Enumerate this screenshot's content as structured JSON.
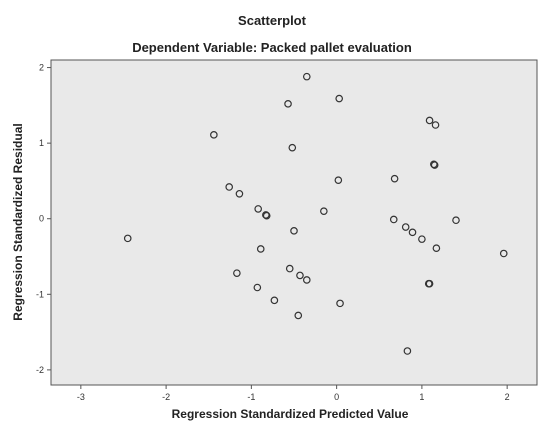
{
  "chart_data": {
    "type": "scatter",
    "title": "Scatterplot",
    "subtitle": "Dependent Variable: Packed pallet evaluation",
    "xlabel": "Regression Standardized Predicted Value",
    "ylabel": "Regression Standardized Residual",
    "xlim": [
      -3.35,
      2.35
    ],
    "ylim": [
      -2.2,
      2.1
    ],
    "x_ticks": [
      -3,
      -2,
      -1,
      0,
      1,
      2
    ],
    "y_ticks": [
      -2,
      -1,
      0,
      1,
      2
    ],
    "x_tick_labels": [
      "-3",
      "-2",
      "-1",
      "0",
      "1",
      "2"
    ],
    "y_tick_labels": [
      "-2",
      "-1",
      "0",
      "1",
      "2"
    ],
    "grid": false,
    "legend": "none",
    "marker": "open-circle",
    "plot_background": "#e9e9e9",
    "marker_color": "#333333",
    "points": [
      {
        "x": -2.45,
        "y": -0.26
      },
      {
        "x": -1.44,
        "y": 1.11
      },
      {
        "x": -1.26,
        "y": 0.42
      },
      {
        "x": -1.14,
        "y": 0.33
      },
      {
        "x": -1.17,
        "y": -0.72
      },
      {
        "x": -0.92,
        "y": 0.13
      },
      {
        "x": -0.83,
        "y": 0.05
      },
      {
        "x": -0.82,
        "y": 0.04
      },
      {
        "x": -0.89,
        "y": -0.4
      },
      {
        "x": -0.93,
        "y": -0.91
      },
      {
        "x": -0.73,
        "y": -1.08
      },
      {
        "x": -0.57,
        "y": 1.52
      },
      {
        "x": -0.52,
        "y": 0.94
      },
      {
        "x": -0.5,
        "y": -0.16
      },
      {
        "x": -0.55,
        "y": -0.66
      },
      {
        "x": -0.43,
        "y": -0.75
      },
      {
        "x": -0.35,
        "y": -0.81
      },
      {
        "x": -0.45,
        "y": -1.28
      },
      {
        "x": -0.35,
        "y": 1.88
      },
      {
        "x": -0.15,
        "y": 0.1
      },
      {
        "x": 0.03,
        "y": 1.59
      },
      {
        "x": 0.02,
        "y": 0.51
      },
      {
        "x": 0.04,
        "y": -1.12
      },
      {
        "x": 0.68,
        "y": 0.53
      },
      {
        "x": 0.67,
        "y": -0.01
      },
      {
        "x": 0.81,
        "y": -0.11
      },
      {
        "x": 0.89,
        "y": -0.18
      },
      {
        "x": 1.0,
        "y": -0.27
      },
      {
        "x": 1.08,
        "y": -0.86
      },
      {
        "x": 1.09,
        "y": -0.86
      },
      {
        "x": 1.17,
        "y": -0.39
      },
      {
        "x": 0.83,
        "y": -1.75
      },
      {
        "x": 1.09,
        "y": 1.3
      },
      {
        "x": 1.16,
        "y": 1.24
      },
      {
        "x": 1.14,
        "y": 0.72
      },
      {
        "x": 1.15,
        "y": 0.71
      },
      {
        "x": 1.4,
        "y": -0.02
      },
      {
        "x": 1.96,
        "y": -0.46
      }
    ]
  }
}
